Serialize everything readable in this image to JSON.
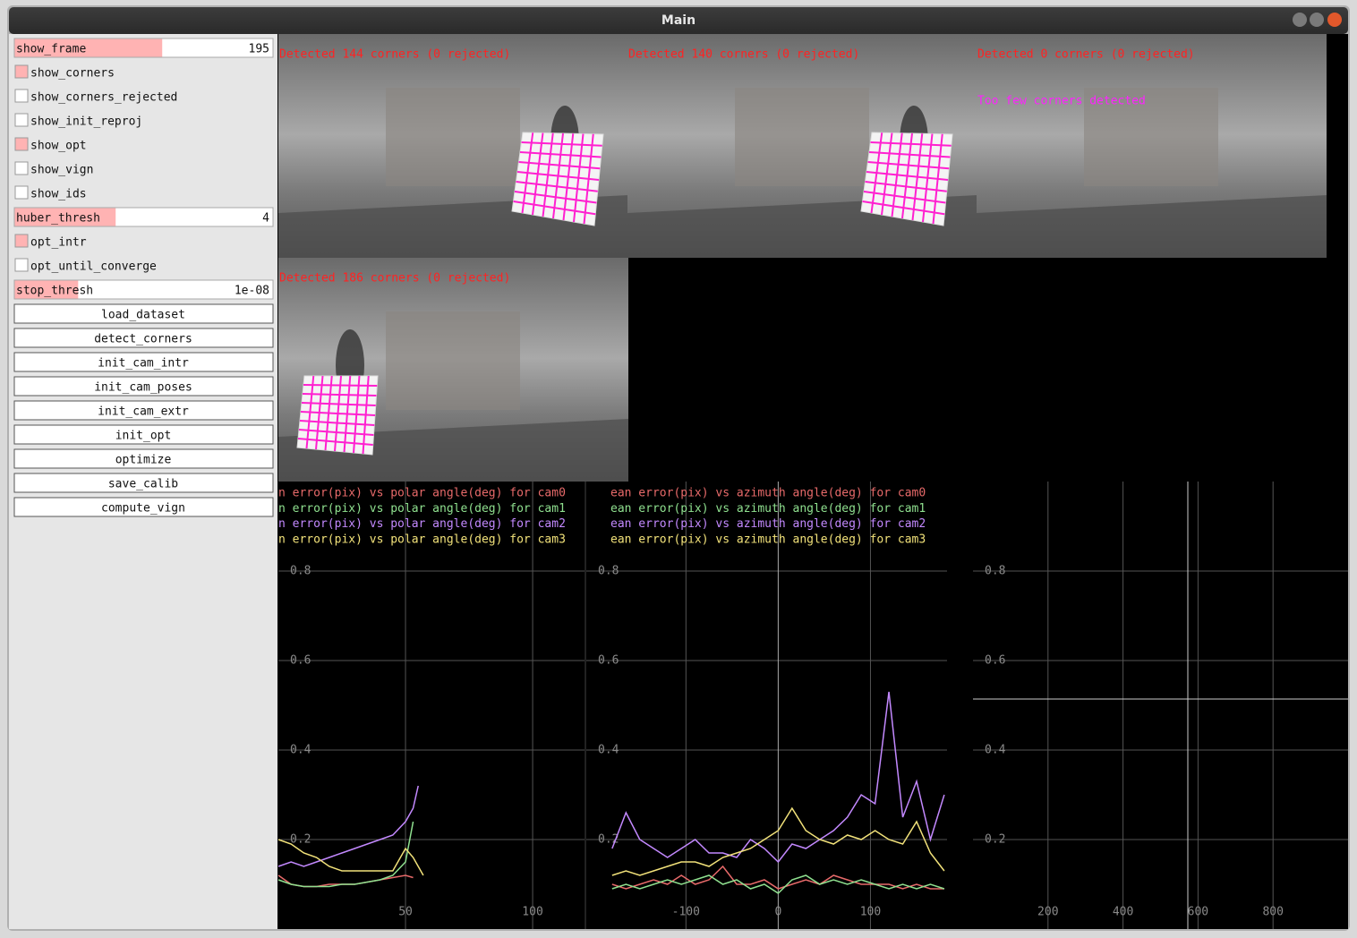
{
  "window": {
    "title": "Main"
  },
  "controls": [
    {
      "type": "slider",
      "label": "show_frame",
      "value": "195"
    },
    {
      "type": "checkbox",
      "label": "show_corners",
      "checked": true
    },
    {
      "type": "checkbox",
      "label": "show_corners_rejected",
      "checked": false
    },
    {
      "type": "checkbox",
      "label": "show_init_reproj",
      "checked": false
    },
    {
      "type": "checkbox",
      "label": "show_opt",
      "checked": true
    },
    {
      "type": "checkbox",
      "label": "show_vign",
      "checked": false
    },
    {
      "type": "checkbox",
      "label": "show_ids",
      "checked": false
    },
    {
      "type": "slider",
      "label": "huber_thresh",
      "value": "4"
    },
    {
      "type": "checkbox",
      "label": "opt_intr",
      "checked": true
    },
    {
      "type": "checkbox",
      "label": "opt_until_converge",
      "checked": false
    },
    {
      "type": "slider",
      "label": "stop_thresh",
      "value": "1e-08"
    },
    {
      "type": "button",
      "label": "load_dataset"
    },
    {
      "type": "button",
      "label": "detect_corners"
    },
    {
      "type": "button",
      "label": "init_cam_intr"
    },
    {
      "type": "button",
      "label": "init_cam_poses"
    },
    {
      "type": "button",
      "label": "init_cam_extr"
    },
    {
      "type": "button",
      "label": "init_opt"
    },
    {
      "type": "button",
      "label": "optimize"
    },
    {
      "type": "button",
      "label": "save_calib"
    },
    {
      "type": "button",
      "label": "compute_vign"
    }
  ],
  "images": [
    {
      "caption": "Detected 144 corners (0 rejected)"
    },
    {
      "caption": "Detected 140 corners (0 rejected)"
    },
    {
      "caption": "Detected 0 corners (0 rejected)",
      "note": "Too few corners detected"
    },
    {
      "caption": "Detected 186 corners (0 rejected)"
    }
  ],
  "plots": [
    {
      "type": "line",
      "xlim": [
        0,
        120.4
      ],
      "ylim": [
        0,
        1
      ],
      "xticks": [
        50,
        100
      ],
      "yticks": [
        0.2,
        0.4,
        0.6,
        0.8
      ],
      "x": [
        0,
        5,
        10,
        15,
        20,
        25,
        30,
        35,
        40,
        45,
        50,
        53,
        55,
        57
      ],
      "series": [
        {
          "name": "n error(pix) vs polar angle(deg) for cam0",
          "color": "#e86a6a",
          "values": [
            0.12,
            0.1,
            0.095,
            0.095,
            0.1,
            0.1,
            0.1,
            0.105,
            0.11,
            0.115,
            0.12,
            0.115,
            null,
            null
          ]
        },
        {
          "name": "n error(pix) vs polar angle(deg) for cam1",
          "color": "#8fe08f",
          "values": [
            0.11,
            0.1,
            0.095,
            0.095,
            0.095,
            0.1,
            0.1,
            0.105,
            0.11,
            0.12,
            0.15,
            0.24,
            null,
            null
          ]
        },
        {
          "name": "n error(pix) vs polar angle(deg) for cam2",
          "color": "#c389ff",
          "values": [
            0.14,
            0.15,
            0.14,
            0.15,
            0.16,
            0.17,
            0.18,
            0.19,
            0.2,
            0.21,
            0.24,
            0.27,
            0.32,
            null
          ]
        },
        {
          "name": "n error(pix) vs polar angle(deg) for cam3",
          "color": "#f2e27a",
          "values": [
            0.2,
            0.19,
            0.17,
            0.16,
            0.14,
            0.13,
            0.13,
            0.13,
            0.13,
            0.13,
            0.18,
            0.16,
            0.14,
            0.12
          ]
        }
      ]
    },
    {
      "type": "line",
      "xlim": [
        -208,
        183
      ],
      "ylim": [
        0,
        1
      ],
      "xticks": [
        -100,
        0,
        100
      ],
      "yticks": [
        0.2,
        0.4,
        0.6,
        0.8
      ],
      "x": [
        -180,
        -165,
        -150,
        -135,
        -120,
        -105,
        -90,
        -75,
        -60,
        -45,
        -30,
        -15,
        0,
        15,
        30,
        45,
        60,
        75,
        90,
        105,
        120,
        135,
        150,
        165,
        180
      ],
      "series": [
        {
          "name": "ean error(pix) vs azimuth angle(deg) for cam0",
          "color": "#e86a6a",
          "values": [
            0.1,
            0.09,
            0.1,
            0.11,
            0.1,
            0.12,
            0.1,
            0.11,
            0.14,
            0.1,
            0.1,
            0.11,
            0.09,
            0.1,
            0.11,
            0.1,
            0.12,
            0.11,
            0.1,
            0.1,
            0.1,
            0.09,
            0.1,
            0.09,
            0.09
          ]
        },
        {
          "name": "ean error(pix) vs azimuth angle(deg) for cam1",
          "color": "#8fe08f",
          "values": [
            0.09,
            0.1,
            0.09,
            0.1,
            0.11,
            0.1,
            0.11,
            0.12,
            0.1,
            0.11,
            0.09,
            0.1,
            0.08,
            0.11,
            0.12,
            0.1,
            0.11,
            0.1,
            0.11,
            0.1,
            0.09,
            0.1,
            0.09,
            0.1,
            0.09
          ]
        },
        {
          "name": "ean error(pix) vs azimuth angle(deg) for cam2",
          "color": "#c389ff",
          "values": [
            0.18,
            0.26,
            0.2,
            0.18,
            0.16,
            0.18,
            0.2,
            0.17,
            0.17,
            0.16,
            0.2,
            0.18,
            0.15,
            0.19,
            0.18,
            0.2,
            0.22,
            0.25,
            0.3,
            0.28,
            0.53,
            0.25,
            0.33,
            0.2,
            0.3
          ]
        },
        {
          "name": "ean error(pix) vs azimuth angle(deg) for cam3",
          "color": "#f2e27a",
          "values": [
            0.12,
            0.13,
            0.12,
            0.13,
            0.14,
            0.15,
            0.15,
            0.14,
            0.16,
            0.17,
            0.18,
            0.2,
            0.22,
            0.27,
            0.22,
            0.2,
            0.19,
            0.21,
            0.2,
            0.22,
            0.2,
            0.19,
            0.24,
            0.17,
            0.13
          ]
        }
      ]
    },
    {
      "type": "line",
      "xlim": [
        0,
        1000
      ],
      "ylim": [
        0,
        1
      ],
      "xticks": [
        200,
        400,
        600,
        800
      ],
      "yticks": [
        0.2,
        0.4,
        0.6,
        0.8
      ],
      "series": []
    }
  ]
}
